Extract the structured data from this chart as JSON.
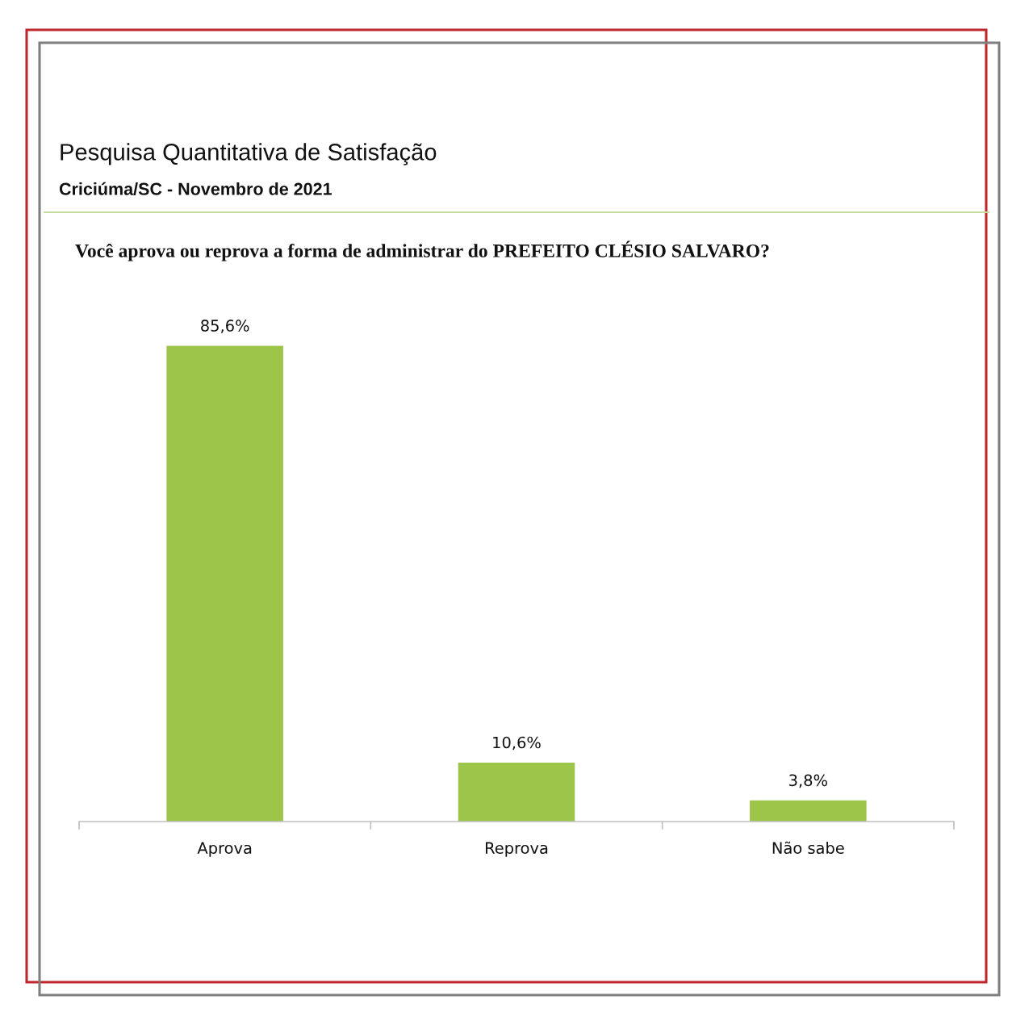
{
  "chart_data": {
    "type": "bar",
    "title": "Pesquisa Quantitativa de Satisfação",
    "subtitle": "Criciúma/SC - Novembro de 2021",
    "annotations": [
      "Você aprova ou reprova a forma de administrar do PREFEITO CLÉSIO SALVARO?"
    ],
    "categories": [
      "Aprova",
      "Reprova",
      "Não sabe"
    ],
    "series": [
      {
        "color": "#9dc54a",
        "values": [
          85.6,
          10.6,
          3.8
        ],
        "value_labels": [
          "85,6%",
          "10,6%",
          "3,8%"
        ]
      }
    ]
  }
}
